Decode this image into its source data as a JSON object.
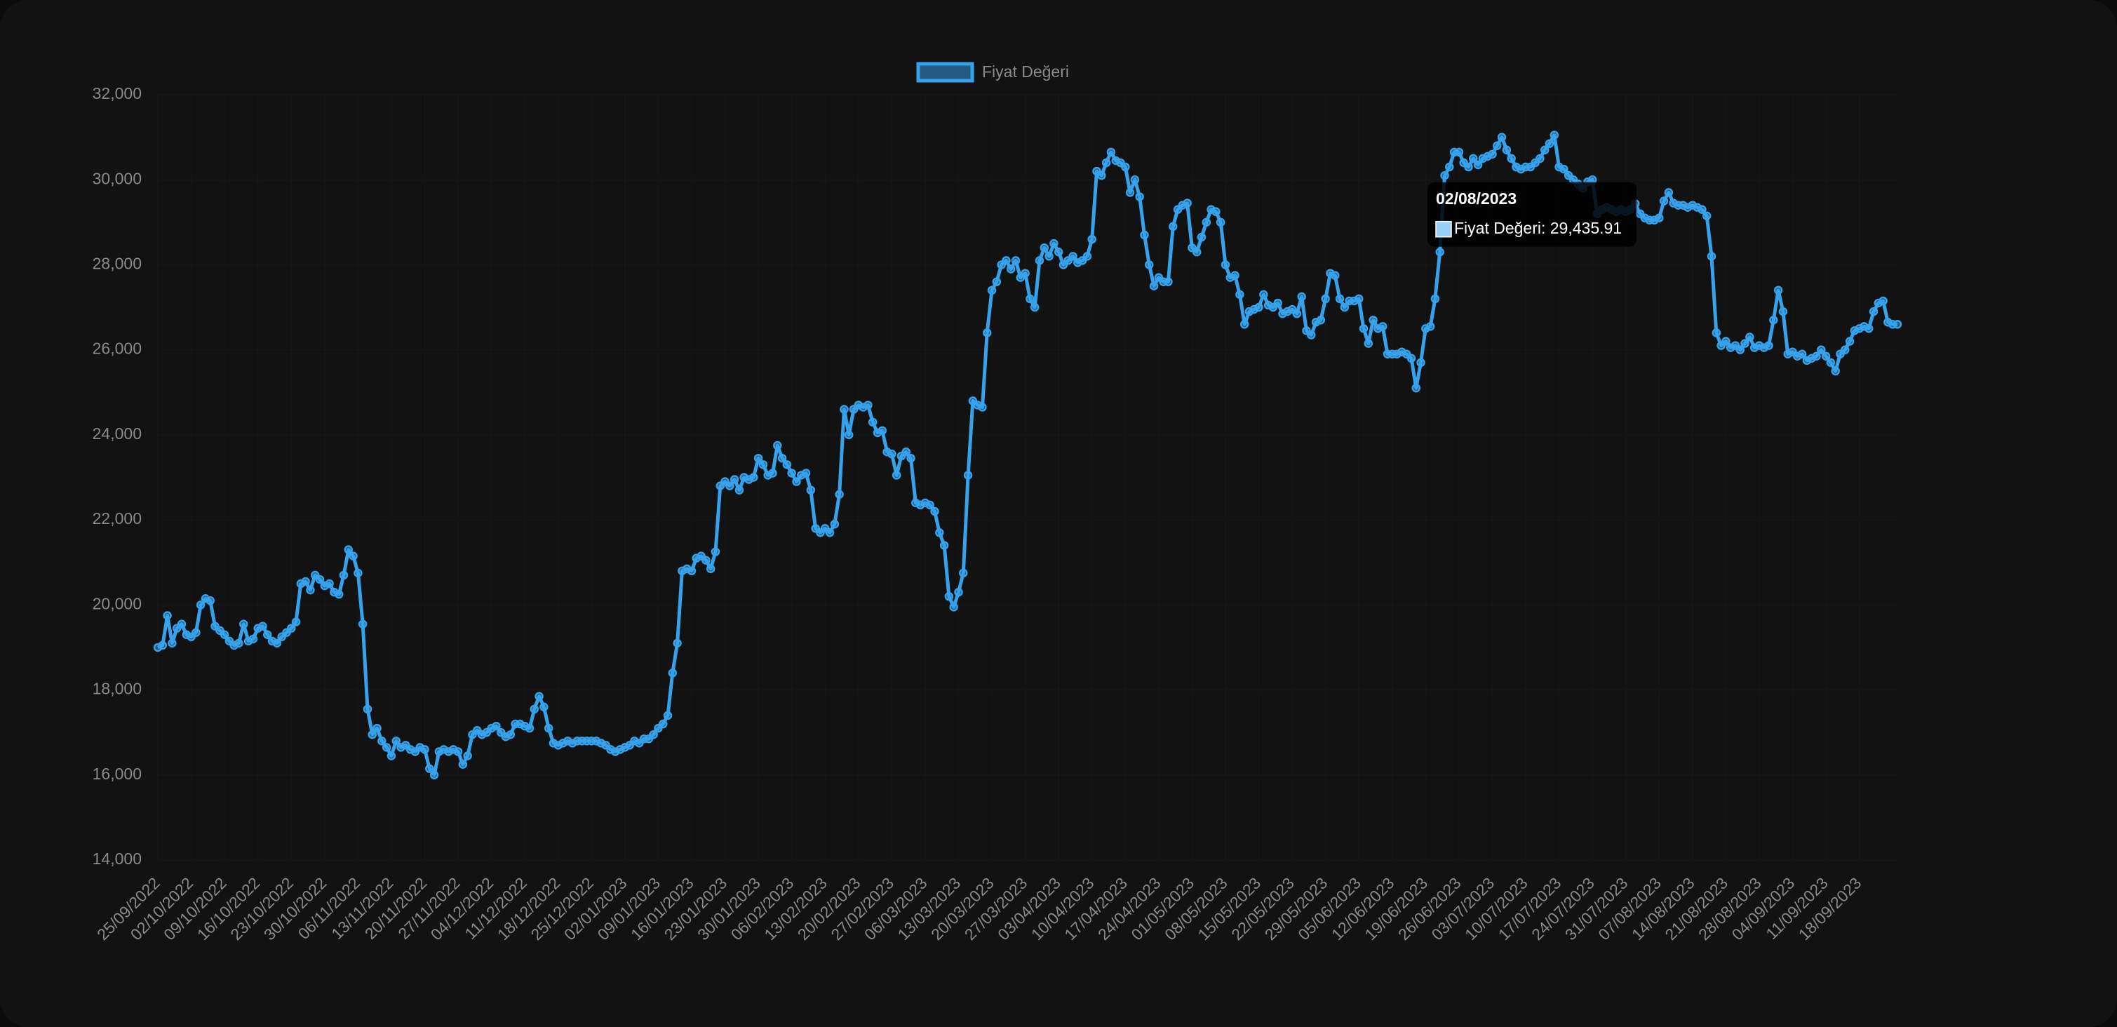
{
  "chart_data": {
    "type": "line",
    "categories": [
      "25/09/2022",
      null,
      null,
      null,
      null,
      null,
      null,
      "02/10/2022",
      null,
      null,
      null,
      null,
      null,
      null,
      "09/10/2022",
      null,
      null,
      null,
      null,
      null,
      null,
      "16/10/2022",
      null,
      null,
      null,
      null,
      null,
      null,
      "23/10/2022",
      null,
      null,
      null,
      null,
      null,
      null,
      "30/10/2022",
      null,
      null,
      null,
      null,
      null,
      null,
      "06/11/2022",
      null,
      null,
      null,
      null,
      null,
      null,
      "13/11/2022",
      null,
      null,
      null,
      null,
      null,
      null,
      "20/11/2022",
      null,
      null,
      null,
      null,
      null,
      null,
      "27/11/2022",
      null,
      null,
      null,
      null,
      null,
      null,
      "04/12/2022",
      null,
      null,
      null,
      null,
      null,
      null,
      "11/12/2022",
      null,
      null,
      null,
      null,
      null,
      null,
      "18/12/2022",
      null,
      null,
      null,
      null,
      null,
      null,
      "25/12/2022",
      null,
      null,
      null,
      null,
      null,
      null,
      "02/01/2023",
      null,
      null,
      null,
      null,
      null,
      null,
      "09/01/2023",
      null,
      null,
      null,
      null,
      null,
      null,
      "16/01/2023",
      null,
      null,
      null,
      null,
      null,
      null,
      "23/01/2023",
      null,
      null,
      null,
      null,
      null,
      null,
      "30/01/2023",
      null,
      null,
      null,
      null,
      null,
      null,
      "06/02/2023",
      null,
      null,
      null,
      null,
      null,
      null,
      "13/02/2023",
      null,
      null,
      null,
      null,
      null,
      null,
      "20/02/2023",
      null,
      null,
      null,
      null,
      null,
      null,
      "27/02/2023",
      null,
      null,
      null,
      null,
      null,
      null,
      "06/03/2023",
      null,
      null,
      null,
      null,
      null,
      null,
      "13/03/2023",
      null,
      null,
      null,
      null,
      null,
      null,
      "20/03/2023",
      null,
      null,
      null,
      null,
      null,
      null,
      "27/03/2023",
      null,
      null,
      null,
      null,
      null,
      null,
      "03/04/2023",
      null,
      null,
      null,
      null,
      null,
      null,
      "10/04/2023",
      null,
      null,
      null,
      null,
      null,
      null,
      "17/04/2023",
      null,
      null,
      null,
      null,
      null,
      null,
      "24/04/2023",
      null,
      null,
      null,
      null,
      null,
      null,
      "01/05/2023",
      null,
      null,
      null,
      null,
      null,
      null,
      "08/05/2023",
      null,
      null,
      null,
      null,
      null,
      null,
      "15/05/2023",
      null,
      null,
      null,
      null,
      null,
      null,
      "22/05/2023",
      null,
      null,
      null,
      null,
      null,
      null,
      "29/05/2023",
      null,
      null,
      null,
      null,
      null,
      null,
      "05/06/2023",
      null,
      null,
      null,
      null,
      null,
      null,
      "12/06/2023",
      null,
      null,
      null,
      null,
      null,
      null,
      "19/06/2023",
      null,
      null,
      null,
      null,
      null,
      null,
      "26/06/2023",
      null,
      null,
      null,
      null,
      null,
      null,
      "03/07/2023",
      null,
      null,
      null,
      null,
      null,
      null,
      "10/07/2023",
      null,
      null,
      null,
      null,
      null,
      null,
      "17/07/2023",
      null,
      null,
      null,
      null,
      null,
      null,
      "24/07/2023",
      null,
      null,
      null,
      null,
      null,
      null,
      "31/07/2023",
      null,
      null,
      null,
      null,
      null,
      null,
      "07/08/2023",
      null,
      null,
      null,
      null,
      null,
      null,
      "14/08/2023",
      null,
      null,
      null,
      null,
      null,
      null,
      "21/08/2023",
      null,
      null,
      null,
      null,
      null,
      null,
      "28/08/2023",
      null,
      null,
      null,
      null,
      null,
      null,
      "04/09/2023",
      null,
      null,
      null,
      null,
      null,
      null,
      "11/09/2023",
      null,
      null,
      null,
      null,
      null,
      null,
      "18/09/2023",
      null,
      null,
      null,
      null,
      null,
      null,
      null,
      null
    ],
    "series": [
      {
        "name": "Fiyat Değeri",
        "color": "#36a2eb",
        "values": [
          19000,
          19050,
          19750,
          19100,
          19450,
          19550,
          19300,
          19250,
          19350,
          20000,
          20150,
          20100,
          19500,
          19400,
          19300,
          19150,
          19050,
          19100,
          19550,
          19150,
          19200,
          19450,
          19500,
          19300,
          19150,
          19100,
          19250,
          19350,
          19450,
          19600,
          20500,
          20550,
          20350,
          20700,
          20600,
          20450,
          20500,
          20300,
          20250,
          20700,
          21300,
          21150,
          20750,
          19550,
          17550,
          16950,
          17100,
          16800,
          16650,
          16450,
          16800,
          16650,
          16700,
          16600,
          16550,
          16650,
          16600,
          16150,
          16000,
          16550,
          16600,
          16550,
          16600,
          16550,
          16250,
          16450,
          16950,
          17050,
          16950,
          17000,
          17100,
          17150,
          17000,
          16900,
          16950,
          17200,
          17200,
          17150,
          17100,
          17550,
          17850,
          17600,
          17100,
          16750,
          16700,
          16750,
          16800,
          16750,
          16800,
          16800,
          16800,
          16800,
          16800,
          16750,
          16700,
          16600,
          16550,
          16600,
          16650,
          16700,
          16800,
          16750,
          16850,
          16850,
          16950,
          17100,
          17200,
          17400,
          18400,
          19100,
          20800,
          20850,
          20800,
          21100,
          21150,
          21050,
          20850,
          21250,
          22800,
          22900,
          22800,
          22950,
          22700,
          23000,
          22950,
          23000,
          23450,
          23300,
          23050,
          23100,
          23750,
          23450,
          23300,
          23100,
          22900,
          23050,
          23100,
          22700,
          21800,
          21700,
          21800,
          21700,
          21900,
          22600,
          24600,
          24000,
          24600,
          24700,
          24650,
          24700,
          24300,
          24050,
          24100,
          23600,
          23550,
          23050,
          23500,
          23600,
          23450,
          22400,
          22350,
          22400,
          22350,
          22200,
          21700,
          21400,
          20200,
          19950,
          20300,
          20750,
          23050,
          24800,
          24700,
          24650,
          26400,
          27400,
          27600,
          28000,
          28100,
          27900,
          28100,
          27700,
          27800,
          27200,
          27000,
          28100,
          28400,
          28200,
          28500,
          28300,
          28000,
          28100,
          28200,
          28050,
          28100,
          28200,
          28600,
          30200,
          30100,
          30400,
          30650,
          30450,
          30400,
          30300,
          29700,
          30000,
          29600,
          28700,
          28000,
          27500,
          27700,
          27600,
          27600,
          28900,
          29300,
          29400,
          29450,
          28400,
          28300,
          28650,
          29000,
          29300,
          29250,
          29000,
          28000,
          27700,
          27750,
          27300,
          26600,
          26900,
          26950,
          27000,
          27300,
          27050,
          27000,
          27100,
          26850,
          26900,
          26950,
          26850,
          27250,
          26450,
          26350,
          26650,
          26700,
          27200,
          27800,
          27750,
          27200,
          27000,
          27150,
          27150,
          27200,
          26500,
          26150,
          26700,
          26500,
          26550,
          25900,
          25900,
          25900,
          25950,
          25900,
          25800,
          25100,
          25700,
          26500,
          26550,
          27200,
          28300,
          30100,
          30300,
          30650,
          30650,
          30400,
          30300,
          30500,
          30350,
          30500,
          30550,
          30600,
          30800,
          31000,
          30700,
          30500,
          30300,
          30250,
          30300,
          30300,
          30400,
          30500,
          30700,
          30850,
          31050,
          30300,
          30250,
          30100,
          30000,
          29900,
          29800,
          29950,
          30000,
          29200,
          29300,
          29350,
          29300,
          29250,
          29300,
          29250,
          29300,
          29435.91,
          29200,
          29100,
          29050,
          29050,
          29100,
          29500,
          29700,
          29450,
          29400,
          29400,
          29350,
          29400,
          29350,
          29300,
          29150,
          28200,
          26400,
          26100,
          26200,
          26050,
          26100,
          26000,
          26150,
          26300,
          26050,
          26100,
          26050,
          26100,
          26700,
          27400,
          26900,
          25900,
          25950,
          25850,
          25900,
          25750,
          25800,
          25850,
          26000,
          25850,
          25700,
          25500,
          25900,
          26000,
          26200,
          26450,
          26500,
          26550,
          26500,
          26900,
          27100,
          27150,
          26650,
          26600,
          26600
        ]
      }
    ],
    "ylim": [
      14000,
      32000
    ],
    "yticks": [
      {
        "value": 14000,
        "label": "14,000"
      },
      {
        "value": 16000,
        "label": "16,000"
      },
      {
        "value": 18000,
        "label": "18,000"
      },
      {
        "value": 20000,
        "label": "20,000"
      },
      {
        "value": 22000,
        "label": "22,000"
      },
      {
        "value": 24000,
        "label": "24,000"
      },
      {
        "value": 26000,
        "label": "26,000"
      },
      {
        "value": 28000,
        "label": "28,000"
      },
      {
        "value": 30000,
        "label": "30,000"
      },
      {
        "value": 32000,
        "label": "32,000"
      }
    ],
    "grid": true,
    "legend": "top",
    "tooltip": {
      "index": 311,
      "title": "02/08/2023",
      "label": "Fiyat Değeri: 29,435.91"
    }
  }
}
